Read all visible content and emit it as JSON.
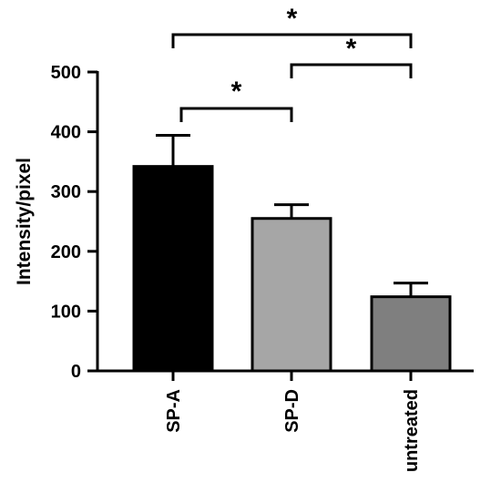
{
  "chart_data": {
    "type": "bar",
    "title": "",
    "xlabel": "",
    "ylabel": "Intensity/pixel",
    "ylim": [
      0,
      500
    ],
    "yticks": [
      0,
      100,
      200,
      300,
      400,
      500
    ],
    "categories": [
      "SP-A",
      "SP-D",
      "untreated"
    ],
    "values": [
      342,
      255,
      124
    ],
    "errors": [
      52,
      23,
      23
    ],
    "colors": [
      "#000000",
      "#a6a6a6",
      "#7f7f7f"
    ],
    "grid": false,
    "legend": "none",
    "significance": [
      {
        "from": 0,
        "to": 1,
        "label": "*"
      },
      {
        "from": 1,
        "to": 2,
        "label": "*"
      },
      {
        "from": 0,
        "to": 2,
        "label": "*"
      }
    ]
  }
}
